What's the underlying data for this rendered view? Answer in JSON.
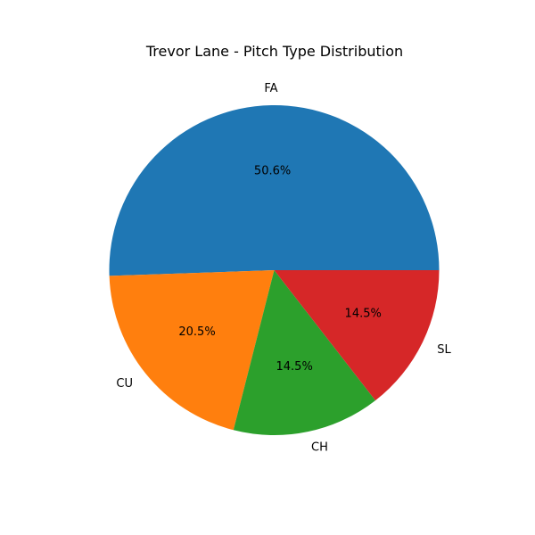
{
  "chart_data": {
    "type": "pie",
    "title": "Trevor Lane - Pitch Type Distribution",
    "start_angle_deg": 0,
    "direction": "counterclockwise",
    "slices": [
      {
        "label": "FA",
        "value": 50.6,
        "pct_label": "50.6%",
        "color": "#1f77b4"
      },
      {
        "label": "CU",
        "value": 20.5,
        "pct_label": "20.5%",
        "color": "#ff7f0e"
      },
      {
        "label": "CH",
        "value": 14.5,
        "pct_label": "14.5%",
        "color": "#2ca02c"
      },
      {
        "label": "SL",
        "value": 14.5,
        "pct_label": "14.5%",
        "color": "#d62728"
      }
    ]
  }
}
